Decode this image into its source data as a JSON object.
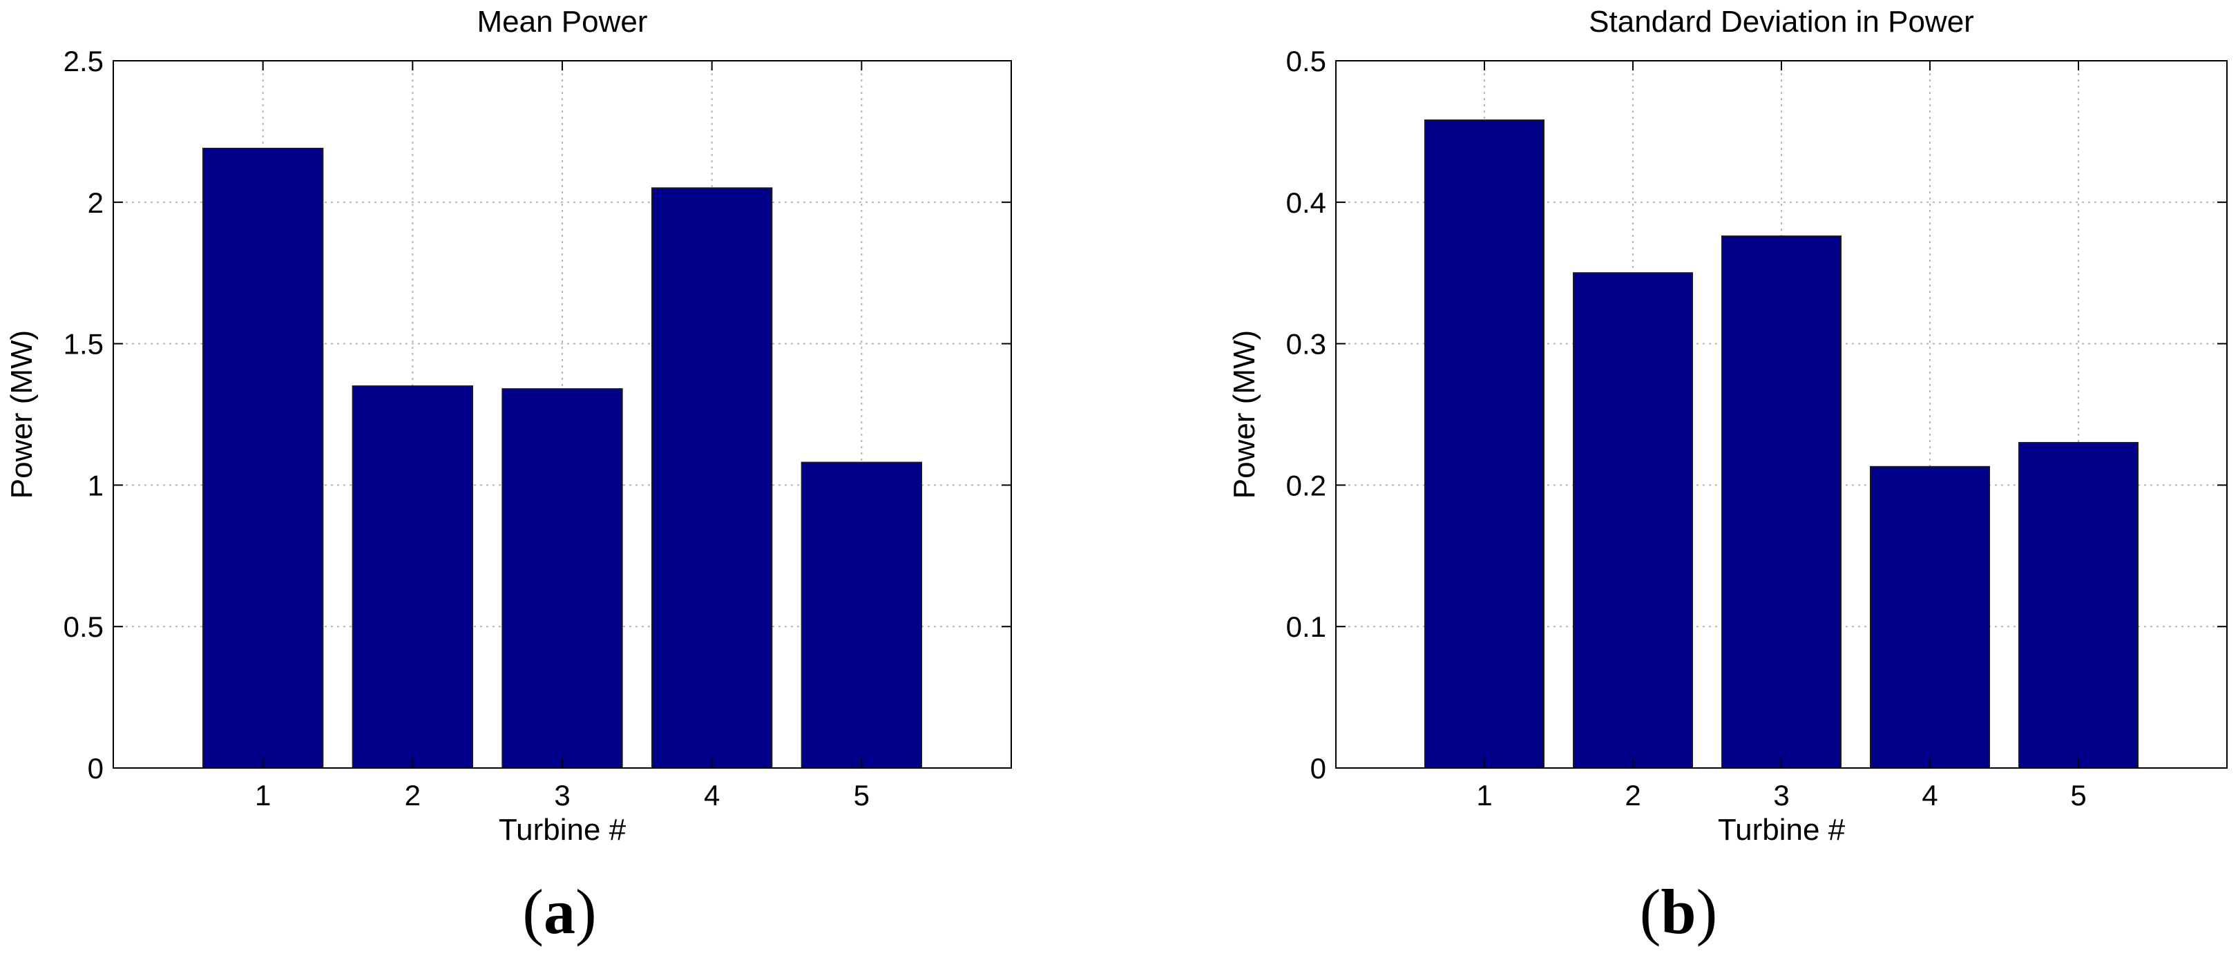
{
  "colors": {
    "bar": "#00008b",
    "grid": "#b3b3b3",
    "axis": "#000000"
  },
  "panels": [
    {
      "label_open": "(",
      "label_letter": "a",
      "label_close": ")"
    },
    {
      "label_open": "(",
      "label_letter": "b",
      "label_close": ")"
    }
  ],
  "chart_data": [
    {
      "type": "bar",
      "title": "Mean Power",
      "xlabel": "Turbine #",
      "ylabel": "Power (MW)",
      "categories": [
        "1",
        "2",
        "3",
        "4",
        "5"
      ],
      "values": [
        2.19,
        1.35,
        1.34,
        2.05,
        1.08
      ],
      "xlim": [
        0,
        6
      ],
      "ylim": [
        0,
        2.5
      ],
      "yticks": [
        0,
        0.5,
        1,
        1.5,
        2,
        2.5
      ],
      "ytick_labels": [
        "0",
        "0.5",
        "1",
        "1.5",
        "2",
        "2.5"
      ],
      "grid": true
    },
    {
      "type": "bar",
      "title": "Standard Deviation in Power",
      "xlabel": "Turbine #",
      "ylabel": "Power (MW)",
      "categories": [
        "1",
        "2",
        "3",
        "4",
        "5"
      ],
      "values": [
        0.458,
        0.35,
        0.376,
        0.213,
        0.23
      ],
      "xlim": [
        0,
        6
      ],
      "ylim": [
        0,
        0.5
      ],
      "yticks": [
        0,
        0.1,
        0.2,
        0.3,
        0.4,
        0.5
      ],
      "ytick_labels": [
        "0",
        "0.1",
        "0.2",
        "0.3",
        "0.4",
        "0.5"
      ],
      "grid": true
    }
  ]
}
